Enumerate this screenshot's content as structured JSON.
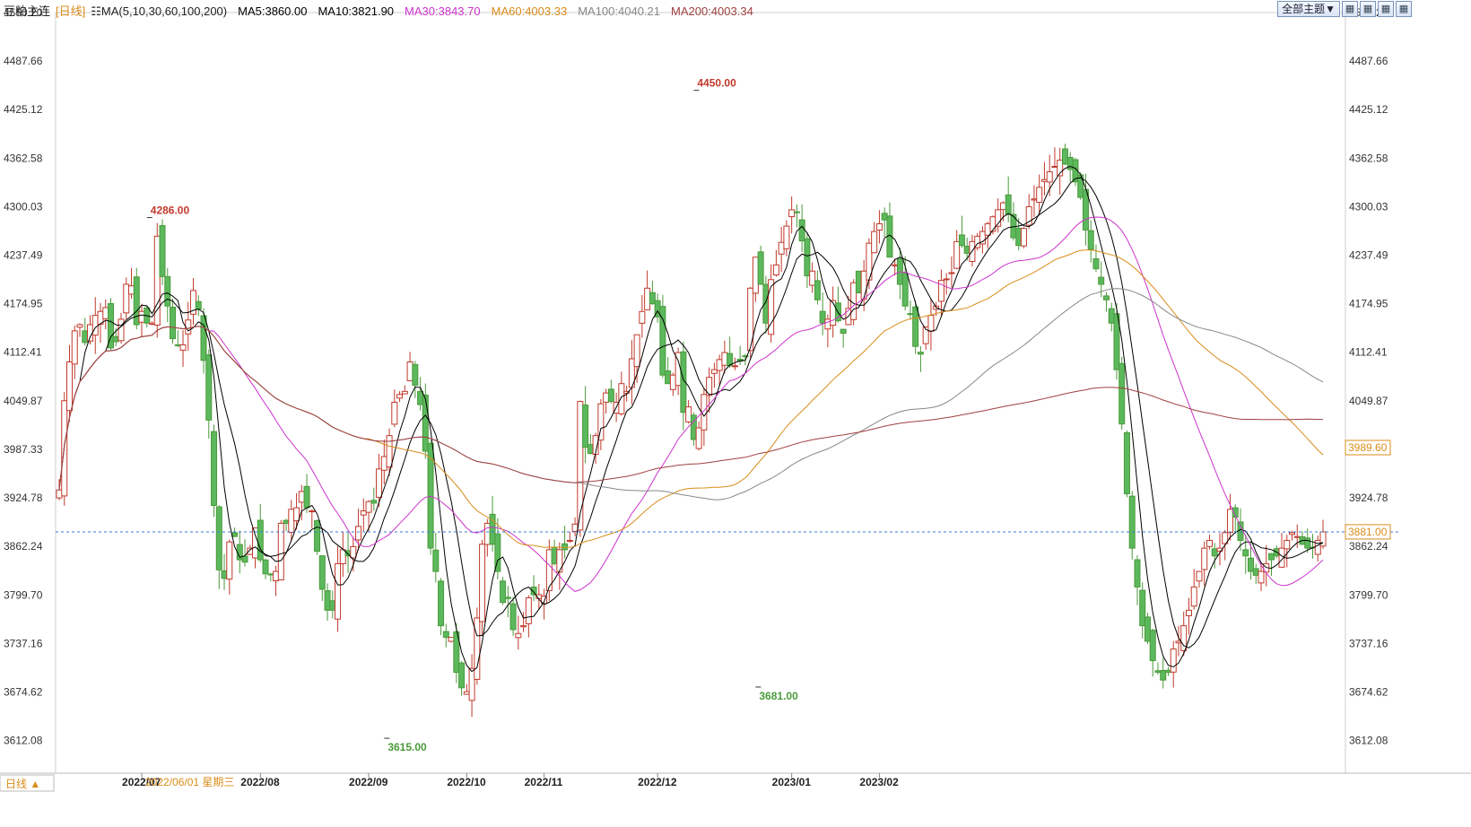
{
  "header": {
    "symbol": "豆粕主连",
    "period": "[日线]",
    "ma_params": "MA(5,10,30,60,100,200)",
    "ma_values": [
      {
        "label": "MA5:3860.00",
        "color": "#000000"
      },
      {
        "label": "MA10:3821.90",
        "color": "#000000"
      },
      {
        "label": "MA30:3843.70",
        "color": "#cc33cc"
      },
      {
        "label": "MA60:4003.33",
        "color": "#d98c1a"
      },
      {
        "label": "MA100:4040.21",
        "color": "#888888"
      },
      {
        "label": "MA200:4003.34",
        "color": "#a04040"
      }
    ]
  },
  "toolbar": {
    "theme_button": "全部主题▼",
    "icons": [
      "layout-icon-1",
      "layout-icon-2",
      "layout-icon-3",
      "layout-icon-4"
    ]
  },
  "bottom": {
    "period_button": "日线 ▲",
    "cursor_date": "2022/06/01 星期三"
  },
  "chart_data": {
    "type": "candlestick",
    "y_ticks": [
      "4550.20",
      "4487.66",
      "4425.12",
      "4362.58",
      "4300.03",
      "4237.49",
      "4174.95",
      "4112.41",
      "4049.87",
      "3987.33",
      "3924.78",
      "3862.24",
      "3799.70",
      "3737.16",
      "3674.62",
      "3612.08"
    ],
    "ylim": [
      3570,
      4550.2
    ],
    "x_ticks": [
      "2022/07",
      "2022/08",
      "2022/09",
      "2022/10",
      "2022/11",
      "2022/12",
      "2023/01",
      "2023/02"
    ],
    "x_tick_index": [
      16,
      39,
      60,
      79,
      94,
      116,
      142,
      159
    ],
    "annotations": [
      {
        "label": "4286.00",
        "index": 17,
        "value": 4286,
        "color": "#c0392b"
      },
      {
        "label": "4450.00",
        "index": 123,
        "value": 4450,
        "color": "#c0392b"
      },
      {
        "label": "3615.00",
        "index": 63,
        "value": 3615,
        "color": "#4a9a3a"
      },
      {
        "label": "3681.00",
        "index": 135,
        "value": 3681,
        "color": "#4a9a3a"
      }
    ],
    "price_tags": [
      {
        "label": "3989.60",
        "value": 3989.6,
        "color": "#d98c1a"
      },
      {
        "label": "3881.00",
        "value": 3881,
        "color": "#d98c1a"
      }
    ],
    "last_price": 3881,
    "closes": [
      3935,
      4050,
      4100,
      4140,
      4148,
      4125,
      4148,
      4160,
      4165,
      4170,
      4118,
      4126,
      4155,
      4200,
      4198,
      4148,
      4165,
      4150,
      4150,
      4262,
      4210,
      4172,
      4130,
      4122,
      4122,
      4154,
      4192,
      4168,
      4102,
      4025,
      3915,
      3832,
      3821,
      3868,
      3875,
      3845,
      3842,
      3860,
      3886,
      3845,
      3827,
      3826,
      3830,
      3892,
      3892,
      3910,
      3912,
      3933,
      3912,
      3908,
      3856,
      3807,
      3780,
      3780,
      3840,
      3858,
      3850,
      3862,
      3888,
      3908,
      3920,
      3918,
      3962,
      3978,
      4005,
      4048,
      4058,
      4062,
      4100,
      4070,
      4045,
      3985,
      3860,
      3830,
      3760,
      3745,
      3745,
      3700,
      3680,
      3675,
      3705,
      3770,
      3865,
      3892,
      3865,
      3830,
      3790,
      3795,
      3755,
      3750,
      3760,
      3796,
      3800,
      3800,
      3798,
      3858,
      3840,
      3858,
      3858,
      3870,
      3891,
      4049,
      3990,
      3982,
      4005,
      4046,
      4060,
      4049,
      4048,
      4072,
      4062,
      4104,
      4135,
      4165,
      4195,
      4175,
      4158,
      4083,
      4072,
      4083,
      4112,
      4035,
      4042,
      4000,
      4015,
      4058,
      4080,
      4090,
      4103,
      4112,
      4095,
      4095,
      4101,
      4107,
      4195,
      4235,
      4200,
      4150,
      4206,
      4225,
      4254,
      4275,
      4296,
      4293,
      4256,
      4211,
      4217,
      4180,
      4150,
      4155,
      4179,
      4153,
      4137,
      4169,
      4202,
      4189,
      4217,
      4253,
      4268,
      4278,
      4283,
      4235,
      4225,
      4200,
      4172,
      4162,
      4120,
      4110,
      4145,
      4160,
      4172,
      4205,
      4207,
      4215,
      4255,
      4250,
      4240,
      4255,
      4262,
      4268,
      4278,
      4287,
      4296,
      4305,
      4290,
      4260,
      4250,
      4272,
      4300,
      4310,
      4325,
      4335,
      4345,
      4352,
      4360,
      4355,
      4348,
      4332,
      4312,
      4270,
      4245,
      4220,
      4200,
      4180,
      4150,
      4090,
      4020,
      3930,
      3860,
      3810,
      3760,
      3740,
      3715,
      3700,
      3690,
      3700,
      3730,
      3740,
      3760,
      3780,
      3810,
      3830,
      3860,
      3870,
      3850,
      3860,
      3880,
      3910,
      3900,
      3870,
      3850,
      3830,
      3825,
      3830,
      3840,
      3845,
      3850,
      3860,
      3870,
      3880,
      3875,
      3865,
      3860,
      3860,
      3870,
      3881
    ],
    "ohlc_sample_note": ""
  }
}
